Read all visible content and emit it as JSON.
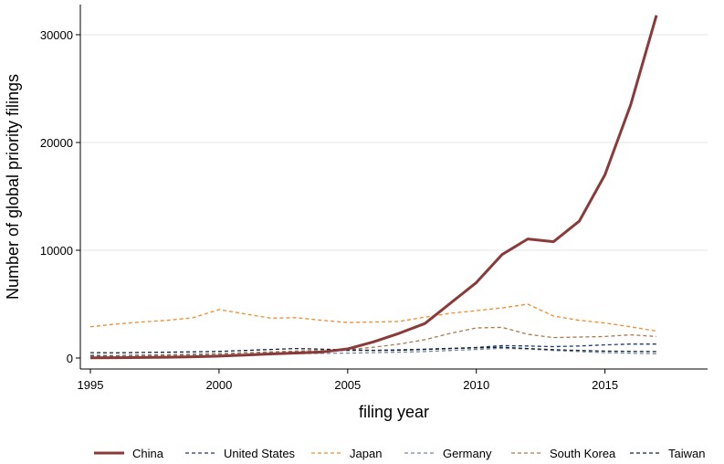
{
  "chart_data": {
    "type": "line",
    "xlabel": "filing year",
    "ylabel": "Number of global priority filings",
    "xlim": [
      1995,
      2017
    ],
    "ylim": [
      0,
      32000
    ],
    "xticks": [
      1995,
      2000,
      2005,
      2010,
      2015
    ],
    "yticks": [
      0,
      10000,
      20000,
      30000
    ],
    "grid": "horizontal",
    "legend": "bottom",
    "x": [
      1995,
      1996,
      1997,
      1998,
      1999,
      2000,
      2001,
      2002,
      2003,
      2004,
      2005,
      2006,
      2007,
      2008,
      2009,
      2010,
      2011,
      2012,
      2013,
      2014,
      2015,
      2016,
      2017
    ],
    "series": [
      {
        "name": "China",
        "color": "#8b3a3a",
        "style": "solid",
        "values": [
          20,
          30,
          50,
          80,
          120,
          180,
          280,
          380,
          470,
          560,
          850,
          1500,
          2300,
          3200,
          5100,
          7000,
          9600,
          11050,
          10800,
          12700,
          17000,
          23500,
          31800
        ]
      },
      {
        "name": "United States",
        "color": "#1f3a6b",
        "style": "dashed",
        "values": [
          250,
          220,
          260,
          300,
          360,
          400,
          480,
          560,
          620,
          660,
          700,
          720,
          760,
          820,
          900,
          980,
          1150,
          1120,
          1060,
          1120,
          1220,
          1300,
          1300
        ]
      },
      {
        "name": "Japan",
        "color": "#f28c28",
        "style": "dashed",
        "values": [
          2900,
          3150,
          3350,
          3500,
          3750,
          4500,
          4100,
          3700,
          3750,
          3500,
          3300,
          3350,
          3400,
          3800,
          4150,
          4400,
          4650,
          5000,
          3900,
          3500,
          3250,
          2900,
          2500
        ]
      },
      {
        "name": "Germany",
        "color": "#7a8a9a",
        "style": "dashed",
        "values": [
          120,
          140,
          160,
          190,
          230,
          280,
          330,
          380,
          410,
          430,
          460,
          500,
          540,
          600,
          700,
          800,
          900,
          850,
          700,
          600,
          500,
          450,
          400
        ]
      },
      {
        "name": "South Korea",
        "color": "#a87a4f",
        "style": "dashed",
        "values": [
          150,
          180,
          220,
          270,
          330,
          400,
          480,
          570,
          650,
          700,
          780,
          1000,
          1300,
          1700,
          2300,
          2800,
          2850,
          2200,
          1900,
          1950,
          2000,
          2150,
          2000
        ]
      },
      {
        "name": "Taiwan",
        "color": "#10243d",
        "style": "dashed",
        "values": [
          500,
          480,
          520,
          540,
          580,
          620,
          700,
          800,
          880,
          820,
          760,
          700,
          720,
          800,
          880,
          950,
          1000,
          880,
          780,
          700,
          640,
          620,
          600
        ]
      }
    ]
  }
}
